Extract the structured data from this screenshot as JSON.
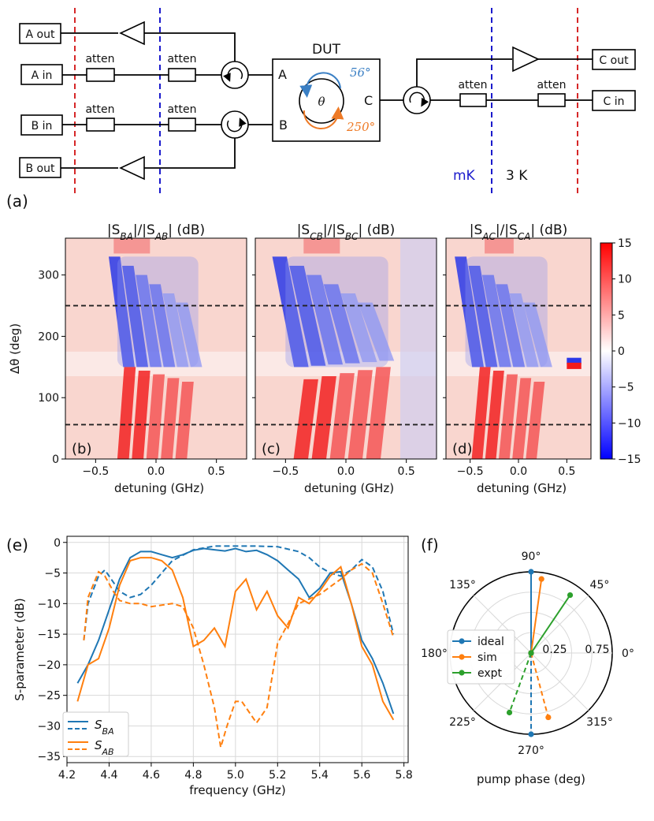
{
  "panel_labels": {
    "a": "(a)",
    "b": "(b)",
    "c": "(c)",
    "d": "(d)",
    "e": "(e)",
    "f": "(f)"
  },
  "schematic": {
    "ports": {
      "a_out": "A out",
      "a_in": "A in",
      "b_in": "B in",
      "b_out": "B out",
      "c_out": "C out",
      "c_in": "C in"
    },
    "atten": "atten",
    "dut_title": "DUT",
    "dut_port_a": "A",
    "dut_port_b": "B",
    "dut_port_c": "C",
    "theta": "θ",
    "angle_top": "56°",
    "angle_bottom": "250°",
    "stage_mk": "mK",
    "stage_3k": "3 K",
    "colors": {
      "mk_line": "#1a1acc",
      "k3_line": "#d62728",
      "blue_arrow": "#3a7fc4",
      "orange_arrow": "#ee7a26"
    }
  },
  "chart_data": [
    {
      "type": "heatmap",
      "id": "b",
      "title_parts": [
        "|S",
        "BA",
        "|/|S",
        "AB",
        "| (dB)"
      ],
      "xlabel": "detuning (GHz)",
      "ylabel": "Δθ (deg)",
      "xlim": [
        -0.75,
        0.75
      ],
      "ylim": [
        0,
        360
      ],
      "xticks": [
        -0.5,
        0.0,
        0.5
      ],
      "xtick_labels": [
        "−0.5",
        "0.0",
        "0.5"
      ],
      "yticks": [
        0,
        100,
        200,
        300
      ],
      "ytick_labels": [
        "0",
        "100",
        "200",
        "300"
      ],
      "hlines": [
        56,
        250
      ],
      "blue_region": {
        "x": [
          -0.32,
          0.35
        ],
        "theta": [
          150,
          330
        ]
      },
      "red_region": {
        "x": [
          -0.3,
          0.3
        ],
        "theta": [
          0,
          150
        ]
      },
      "corner_label": "(b)"
    },
    {
      "type": "heatmap",
      "id": "c",
      "title_parts": [
        "|S",
        "CB",
        "|/|S",
        "BC",
        "| (dB)"
      ],
      "xlabel": "detuning (GHz)",
      "xlim": [
        -0.75,
        0.75
      ],
      "ylim": [
        0,
        360
      ],
      "xticks": [
        -0.5,
        0.0,
        0.5
      ],
      "xtick_labels": [
        "−0.5",
        "0.0",
        "0.5"
      ],
      "hlines": [
        56,
        250
      ],
      "blue_region": {
        "x": [
          -0.5,
          0.35
        ],
        "theta": [
          150,
          330
        ]
      },
      "red_region": {
        "x": [
          -0.4,
          0.35
        ],
        "theta": [
          0,
          150
        ]
      },
      "corner_label": "(c)"
    },
    {
      "type": "heatmap",
      "id": "d",
      "title_parts": [
        "|S",
        "AC",
        "|/|S",
        "CA",
        "| (dB)"
      ],
      "xlabel": "detuning (GHz)",
      "xlim": [
        -0.75,
        0.75
      ],
      "ylim": [
        0,
        360
      ],
      "xticks": [
        -0.5,
        0.0,
        0.5
      ],
      "xtick_labels": [
        "−0.5",
        "0.0",
        "0.5"
      ],
      "hlines": [
        56,
        250
      ],
      "blue_region": {
        "x": [
          -0.55,
          0.3
        ],
        "theta": [
          150,
          330
        ]
      },
      "red_region": {
        "x": [
          -0.45,
          0.25
        ],
        "theta": [
          0,
          150
        ]
      },
      "corner_label": "(d)"
    },
    {
      "type": "colorbar",
      "id": "colorbar",
      "range": [
        -15,
        15
      ],
      "ticks": [
        15,
        10,
        5,
        0,
        -5,
        -10,
        -15
      ],
      "tick_labels": [
        "15",
        "10",
        "5",
        "0",
        "−5",
        "−10",
        "−15"
      ]
    },
    {
      "type": "line",
      "id": "e",
      "xlabel": "frequency (GHz)",
      "ylabel": "S-parameter (dB)",
      "xlim": [
        4.2,
        5.82
      ],
      "ylim": [
        -36,
        1
      ],
      "xticks": [
        4.2,
        4.4,
        4.6,
        4.8,
        5.0,
        5.2,
        5.4,
        5.6,
        5.8
      ],
      "xtick_labels": [
        "4.2",
        "4.4",
        "4.6",
        "4.8",
        "5.0",
        "5.2",
        "5.4",
        "5.6",
        "5.8"
      ],
      "yticks": [
        0,
        -5,
        -10,
        -15,
        -20,
        -25,
        -30,
        -35
      ],
      "ytick_labels": [
        "0",
        "−5",
        "−10",
        "−15",
        "−20",
        "−25",
        "−30",
        "−35"
      ],
      "grid": true,
      "legend_position": "bottom-left",
      "series": [
        {
          "name": "S_BA expt",
          "color": "#1f77b4",
          "dash": "solid",
          "x": [
            4.25,
            4.3,
            4.35,
            4.4,
            4.45,
            4.5,
            4.55,
            4.6,
            4.65,
            4.7,
            4.75,
            4.8,
            4.85,
            4.9,
            4.95,
            5.0,
            5.05,
            5.1,
            5.15,
            5.2,
            5.25,
            5.3,
            5.35,
            5.4,
            5.45,
            5.5,
            5.55,
            5.6,
            5.65,
            5.7,
            5.75
          ],
          "y": [
            -23,
            -20,
            -16,
            -11,
            -6,
            -2.5,
            -1.5,
            -1.5,
            -2,
            -2.5,
            -2,
            -1.3,
            -1,
            -1.2,
            -1.4,
            -1,
            -1.5,
            -1.3,
            -2,
            -3,
            -4.5,
            -6,
            -9,
            -7.5,
            -5,
            -4.8,
            -10,
            -16,
            -19,
            -23,
            -28
          ]
        },
        {
          "name": "S_BA sim",
          "color": "#1f77b4",
          "dash": "dashed",
          "x": [
            4.28,
            4.3,
            4.35,
            4.38,
            4.42,
            4.45,
            4.5,
            4.55,
            4.6,
            4.65,
            4.7,
            4.8,
            4.9,
            5.0,
            5.1,
            5.2,
            5.3,
            5.35,
            5.4,
            5.45,
            5.5,
            5.55,
            5.6,
            5.65,
            5.7,
            5.75
          ],
          "y": [
            -16,
            -10,
            -5.5,
            -4.5,
            -6.5,
            -8,
            -9,
            -8.5,
            -7,
            -5,
            -3,
            -1.2,
            -0.6,
            -0.6,
            -0.6,
            -0.7,
            -1.5,
            -2.5,
            -4,
            -5,
            -5.5,
            -4.5,
            -2.8,
            -4,
            -8,
            -15
          ]
        },
        {
          "name": "S_AB expt",
          "color": "#ff7f0e",
          "dash": "solid",
          "x": [
            4.25,
            4.3,
            4.35,
            4.4,
            4.45,
            4.5,
            4.55,
            4.6,
            4.65,
            4.7,
            4.75,
            4.8,
            4.85,
            4.9,
            4.95,
            5.0,
            5.05,
            5.1,
            5.15,
            5.2,
            5.25,
            5.3,
            5.35,
            5.4,
            5.45,
            5.5,
            5.55,
            5.6,
            5.65,
            5.7,
            5.75
          ],
          "y": [
            -26,
            -20,
            -19,
            -14,
            -7,
            -3,
            -2.5,
            -2.5,
            -3,
            -4.5,
            -9,
            -17,
            -16,
            -14,
            -17,
            -8,
            -6,
            -11,
            -8,
            -12,
            -14,
            -9,
            -10,
            -8,
            -5.5,
            -4,
            -10,
            -17,
            -20,
            -26,
            -29
          ]
        },
        {
          "name": "S_AB sim",
          "color": "#ff7f0e",
          "dash": "dashed",
          "x": [
            4.28,
            4.3,
            4.35,
            4.38,
            4.42,
            4.45,
            4.5,
            4.55,
            4.6,
            4.7,
            4.75,
            4.8,
            4.85,
            4.9,
            4.93,
            4.96,
            5.0,
            5.03,
            5.07,
            5.1,
            5.15,
            5.2,
            5.3,
            5.4,
            5.5,
            5.55,
            5.6,
            5.65,
            5.7,
            5.75
          ],
          "y": [
            -16,
            -9,
            -4.8,
            -5.5,
            -8,
            -9.5,
            -10,
            -10,
            -10.5,
            -10,
            -10.5,
            -14,
            -20,
            -27,
            -33.5,
            -30,
            -26,
            -26,
            -28,
            -29.5,
            -27,
            -16.5,
            -10,
            -8.5,
            -6,
            -4.5,
            -3.5,
            -5,
            -10,
            -15.5
          ]
        }
      ],
      "legend": [
        {
          "label_main": "S",
          "label_sub": "BA",
          "color": "#1f77b4"
        },
        {
          "label_main": "S",
          "label_sub": "AB",
          "color": "#ff7f0e"
        }
      ]
    },
    {
      "type": "polar",
      "id": "f",
      "xlabel": "pump phase (deg)",
      "angle_labels": [
        "0°",
        "45°",
        "90°",
        "135°",
        "180°",
        "225°",
        "270°",
        "315°"
      ],
      "radial_labels": [
        "0.25",
        "0.75"
      ],
      "legend_position": "center-left",
      "series": [
        {
          "name": "ideal",
          "color": "#1f77b4",
          "dash": "solid",
          "angle": 90,
          "r": 1.0
        },
        {
          "name": "ideal",
          "color": "#1f77b4",
          "dash": "dashed",
          "angle": 270,
          "r": 1.0
        },
        {
          "name": "sim",
          "color": "#ff7f0e",
          "dash": "solid",
          "angle": 82,
          "r": 0.92
        },
        {
          "name": "sim",
          "color": "#ff7f0e",
          "dash": "dashed",
          "angle": 285,
          "r": 0.82
        },
        {
          "name": "expt",
          "color": "#2ca02c",
          "dash": "solid",
          "angle": 56,
          "r": 0.86
        },
        {
          "name": "expt",
          "color": "#2ca02c",
          "dash": "dashed",
          "angle": 250,
          "r": 0.78
        }
      ],
      "legend": [
        "ideal",
        "sim",
        "expt"
      ]
    }
  ]
}
